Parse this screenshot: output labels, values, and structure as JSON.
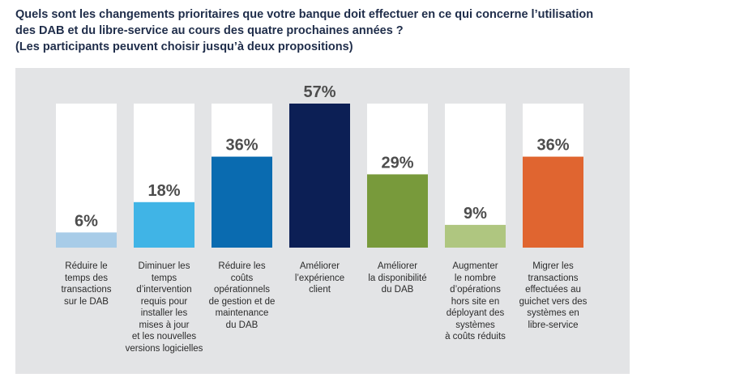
{
  "title_lines": [
    "Quels sont les changements prioritaires que votre banque doit effectuer en ce qui concerne l’utilisation",
    "des DAB et du libre-service au cours des quatre prochaines années ?",
    "(Les participants peuvent choisir jusqu’à deux propositions)"
  ],
  "chart_data": {
    "type": "bar",
    "title": "Quels sont les changements prioritaires que votre banque doit effectuer en ce qui concerne l’utilisation des DAB et du libre-service au cours des quatre prochaines années ?",
    "subtitle": "(Les participants peuvent choisir jusqu’à deux propositions)",
    "categories": [
      "Réduire le temps des transactions sur le DAB",
      "Diminuer les temps d’intervention requis pour installer les mises à jour et les nouvelles versions logicielles",
      "Réduire les coûts opérationnels de gestion et de maintenance du DAB",
      "Améliorer l’expérience client",
      "Améliorer la disponibilité du DAB",
      "Augmenter le nombre d’opérations hors site en déployant des systèmes à coûts réduits",
      "Migrer les transactions effectuées au guichet vers des systèmes en libre-service"
    ],
    "category_lines": [
      [
        "Réduire le",
        "temps des",
        "transactions",
        "sur le DAB"
      ],
      [
        "Diminuer les",
        "temps",
        "d’intervention",
        "requis pour",
        "installer les",
        "mises à jour",
        "et les nouvelles",
        "versions logicielles"
      ],
      [
        "Réduire les",
        "coûts",
        "opérationnels",
        "de gestion et de",
        "maintenance",
        "du DAB"
      ],
      [
        "Améliorer",
        "l’expérience",
        "client"
      ],
      [
        "Améliorer",
        "la disponibilité",
        "du DAB"
      ],
      [
        "Augmenter",
        "le nombre",
        "d’opérations",
        "hors site en",
        "déployant des",
        "systèmes",
        "à coûts réduits"
      ],
      [
        "Migrer les",
        "transactions",
        "effectuées au",
        "guichet vers des",
        "systèmes en",
        "libre-service"
      ]
    ],
    "values": [
      6,
      18,
      36,
      57,
      29,
      9,
      36
    ],
    "value_labels": [
      "6%",
      "18%",
      "36%",
      "57%",
      "29%",
      "9%",
      "36%"
    ],
    "colors": [
      "#a8cce8",
      "#40b4e6",
      "#0a6bb0",
      "#0c1f55",
      "#789a3b",
      "#afc680",
      "#e06530"
    ],
    "background_bar_color": "#ffffff",
    "ylim": [
      0,
      57
    ],
    "xlabel": "",
    "ylabel": ""
  }
}
